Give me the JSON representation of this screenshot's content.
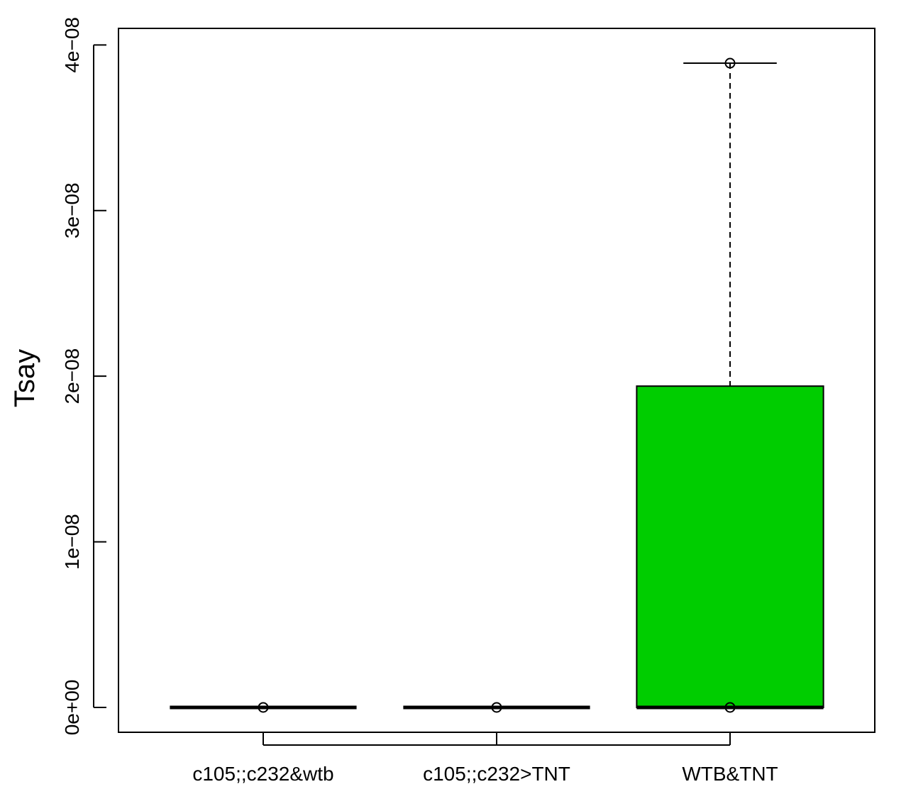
{
  "chart_data": {
    "type": "box",
    "title": "",
    "xlabel": "",
    "ylabel": "Tsay",
    "ylim": [
      -1.5e-09,
      4.1e-08
    ],
    "yticks": [
      0,
      1e-08,
      2e-08,
      3e-08,
      4e-08
    ],
    "ytick_labels": [
      "0e+00",
      "1e−08",
      "2e−08",
      "3e−08",
      "4e−08"
    ],
    "categories": [
      "c105;;c232&wtb",
      "c105;;c232>TNT",
      "WTB&TNT"
    ],
    "boxes": [
      {
        "category": "c105;;c232&wtb",
        "min": 0,
        "q1": 0,
        "median": 0,
        "q3": 0,
        "max": 0,
        "points": [
          0
        ],
        "fill": "#ffffff"
      },
      {
        "category": "c105;;c232>TNT",
        "min": 0,
        "q1": 0,
        "median": 0,
        "q3": 0,
        "max": 0,
        "points": [
          0
        ],
        "fill": "#ffffff"
      },
      {
        "category": "WTB&TNT",
        "min": 0,
        "q1": 0,
        "median": 0,
        "q3": 1.94e-08,
        "max": 3.89e-08,
        "points": [
          0,
          3.89e-08
        ],
        "fill": "#00cd00"
      }
    ],
    "colors": {
      "box_fill": "#00cd00",
      "line": "#000000"
    },
    "grid": false,
    "legend": "none"
  }
}
